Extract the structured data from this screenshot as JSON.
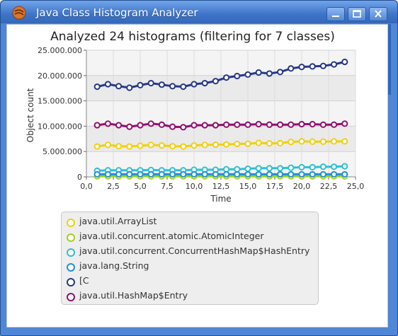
{
  "window": {
    "title": "Java Class Histogram Analyzer",
    "buttons": [
      "minimize",
      "maximize",
      "close"
    ],
    "accent": "#4f86d6"
  },
  "chart_data": {
    "type": "line",
    "title": "Analyzed 24 histograms (filtering for 7 classes)",
    "xlabel": "Time",
    "ylabel": "Object count",
    "xlim": [
      0,
      25
    ],
    "ylim": [
      0,
      25000000
    ],
    "x_ticks": [
      "0,0",
      "2,5",
      "5,0",
      "7,5",
      "10,0",
      "12,5",
      "15,0",
      "17,5",
      "20,0",
      "22,5",
      "25,0"
    ],
    "y_ticks": [
      "0",
      "5.000.000",
      "10.000.000",
      "15.000.000",
      "20.000.000",
      "25.000.000"
    ],
    "x": [
      1,
      2,
      3,
      4,
      5,
      6,
      7,
      8,
      9,
      10,
      11,
      12,
      13,
      14,
      15,
      16,
      17,
      18,
      19,
      20,
      21,
      22,
      23,
      24
    ],
    "series": [
      {
        "name": "java.util.ArrayList",
        "color": "#f0d010",
        "values": [
          6000000,
          6300000,
          6050000,
          6000000,
          6150000,
          6300000,
          6200000,
          6050000,
          6000000,
          6200000,
          6300000,
          6350000,
          6400000,
          6500000,
          6550000,
          6700000,
          6600000,
          6650000,
          6900000,
          7000000,
          6950000,
          6950000,
          7000000,
          7000000
        ]
      },
      {
        "name": "java.util.concurrent.atomic.AtomicInteger",
        "color": "#a0d020",
        "values": [
          100000,
          100000,
          100000,
          100000,
          100000,
          100000,
          100000,
          100000,
          100000,
          100000,
          100000,
          100000,
          100000,
          100000,
          100000,
          100000,
          100000,
          100000,
          100000,
          100000,
          100000,
          100000,
          100000,
          100000
        ]
      },
      {
        "name": "java.util.concurrent.ConcurrentHashMap$HashEntry",
        "color": "#30c0d0",
        "values": [
          1200000,
          1300000,
          1300000,
          1300000,
          1300000,
          1350000,
          1300000,
          1300000,
          1300000,
          1400000,
          1400000,
          1400000,
          1500000,
          1500000,
          1600000,
          1700000,
          1700000,
          1700000,
          1800000,
          1900000,
          1900000,
          2000000,
          2000000,
          2100000
        ]
      },
      {
        "name": "java.lang.String",
        "color": "#2090d8",
        "values": [
          500000,
          500000,
          500000,
          500000,
          500000,
          500000,
          500000,
          500000,
          500000,
          500000,
          500000,
          500000,
          500000,
          500000,
          500000,
          500000,
          500000,
          500000,
          500000,
          500000,
          500000,
          500000,
          500000,
          500000
        ]
      },
      {
        "name": "[C",
        "color": "#283888",
        "values": [
          17800000,
          18300000,
          17900000,
          17600000,
          18100000,
          18500000,
          18200000,
          17900000,
          17800000,
          18300000,
          18500000,
          18900000,
          19600000,
          19900000,
          20200000,
          20600000,
          20400000,
          20700000,
          21400000,
          21700000,
          21800000,
          21900000,
          22200000,
          22700000
        ]
      },
      {
        "name": "java.util.HashMap$Entry",
        "color": "#901070",
        "values": [
          10200000,
          10500000,
          10200000,
          9900000,
          10200000,
          10500000,
          10300000,
          9900000,
          9800000,
          10200000,
          10200000,
          10200000,
          10300000,
          10300000,
          10300000,
          10400000,
          10300000,
          10300000,
          10300000,
          10400000,
          10400000,
          10300000,
          10300000,
          10500000
        ]
      }
    ]
  },
  "legend": {
    "items": [
      {
        "label": "java.util.ArrayList",
        "color": "#f0d010"
      },
      {
        "label": "java.util.concurrent.atomic.AtomicInteger",
        "color": "#a0d020"
      },
      {
        "label": "java.util.concurrent.ConcurrentHashMap$HashEntry",
        "color": "#30c0d0"
      },
      {
        "label": "java.lang.String",
        "color": "#2090d8"
      },
      {
        "label": "[C",
        "color": "#283888"
      },
      {
        "label": "java.util.HashMap$Entry",
        "color": "#901070"
      }
    ]
  }
}
